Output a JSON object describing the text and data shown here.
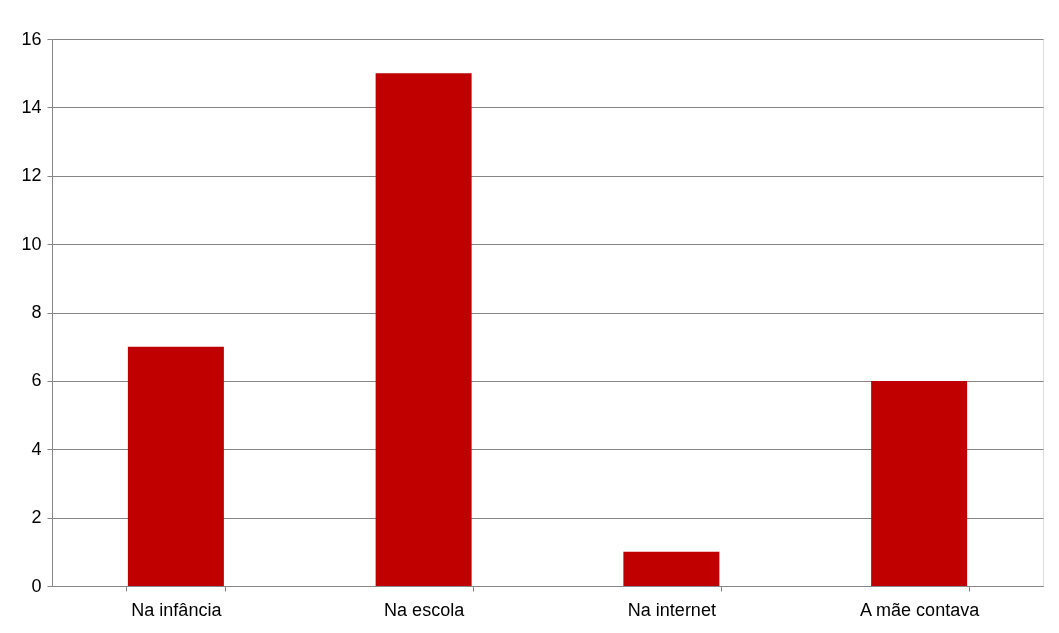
{
  "chart_data": {
    "type": "bar",
    "categories": [
      "Na infância",
      "Na escola",
      "Na internet",
      "A mãe contava"
    ],
    "values": [
      7,
      15,
      1,
      6
    ],
    "color": "#c00000",
    "ylim": [
      0,
      16
    ],
    "yticks": [
      0,
      2,
      4,
      6,
      8,
      10,
      12,
      14,
      16
    ],
    "grid": "y"
  }
}
